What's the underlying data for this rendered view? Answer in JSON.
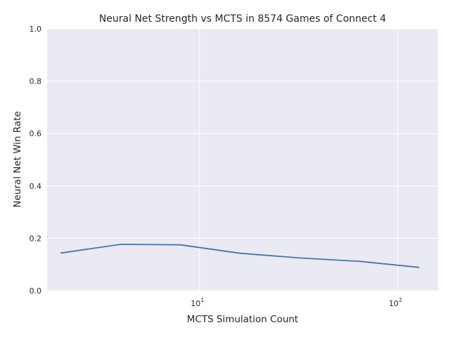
{
  "chart_data": {
    "type": "line",
    "title": "Neural Net Strength vs MCTS in 8574 Games of Connect 4",
    "xlabel": "MCTS Simulation Count",
    "ylabel": "Neural Net Win Rate",
    "xscale": "log",
    "xlim": [
      1.7,
      160
    ],
    "ylim": [
      0,
      1
    ],
    "x_ticks": [
      {
        "value": 10,
        "base": "10",
        "exp": "1"
      },
      {
        "value": 100,
        "base": "10",
        "exp": "2"
      }
    ],
    "y_ticks": [
      {
        "value": 0.0,
        "label": "0.0"
      },
      {
        "value": 0.2,
        "label": "0.2"
      },
      {
        "value": 0.4,
        "label": "0.4"
      },
      {
        "value": 0.6,
        "label": "0.6"
      },
      {
        "value": 0.8,
        "label": "0.8"
      },
      {
        "value": 1.0,
        "label": "1.0"
      }
    ],
    "grid": true,
    "series": [
      {
        "color": "#4c72b0",
        "x": [
          2,
          4,
          8,
          16,
          32,
          64,
          128
        ],
        "y": [
          0.144,
          0.177,
          0.175,
          0.143,
          0.125,
          0.112,
          0.089
        ]
      }
    ]
  },
  "colors": {
    "plot_background": "#eaeaf2",
    "grid": "#ffffff",
    "line": "#4c72b0",
    "text": "#262626"
  }
}
